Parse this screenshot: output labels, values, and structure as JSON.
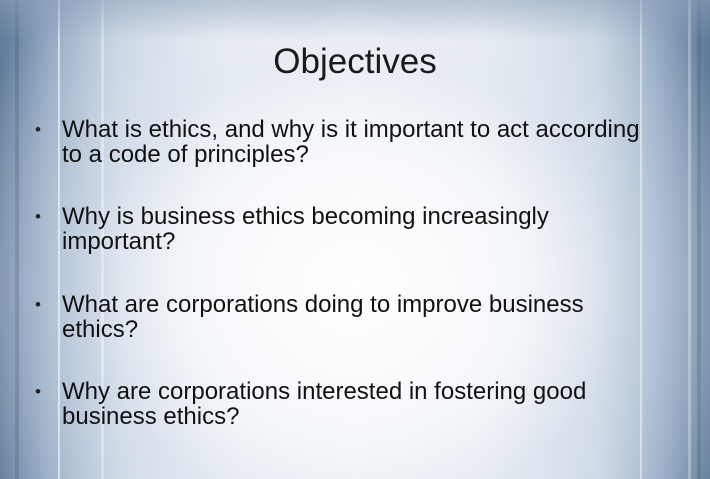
{
  "slide": {
    "title": "Objectives",
    "bullets": [
      {
        "marker": "•",
        "text": "What is ethics, and why is it important to act according to a code of principles?"
      },
      {
        "marker": "•",
        "text": "Why is business ethics becoming increasingly important?"
      },
      {
        "marker": "•",
        "text": "What are corporations doing to improve business ethics?"
      },
      {
        "marker": "•",
        "text": "Why are corporations interested in fostering good business ethics?"
      }
    ]
  },
  "colors": {
    "text": "#111111",
    "background_edge": "#5f7a99",
    "background_center": "#f7f9fb"
  }
}
